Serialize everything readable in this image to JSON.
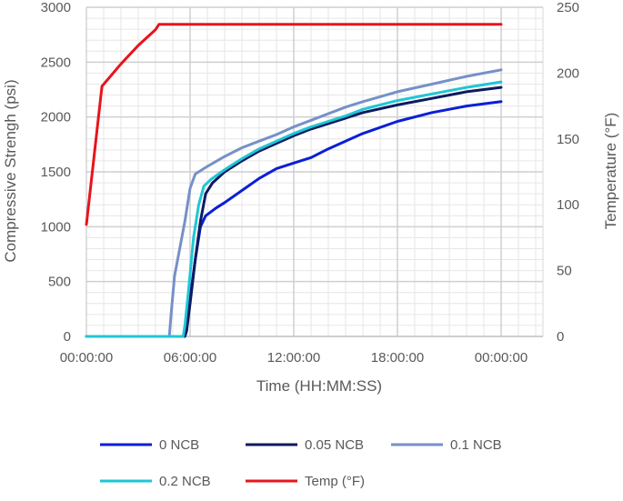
{
  "chart_data": {
    "type": "line",
    "xlabel": "Time (HH:MM:SS)",
    "ylabel": "Compressive Strengh (psi)",
    "y2label": "Temperature (°F)",
    "x_unit": "hours",
    "x_ticks": [
      {
        "value": 0,
        "label": "00:00:00"
      },
      {
        "value": 6,
        "label": "06:00:00"
      },
      {
        "value": 12,
        "label": "12:00:00"
      },
      {
        "value": 18,
        "label": "18:00:00"
      },
      {
        "value": 24,
        "label": "00:00:00"
      }
    ],
    "xlim": [
      0,
      24
    ],
    "ylim": [
      0,
      3000
    ],
    "y_ticks": [
      0,
      500,
      1000,
      1500,
      2000,
      2500,
      3000
    ],
    "y2lim": [
      0,
      250
    ],
    "y2_ticks": [
      0,
      50,
      100,
      150,
      200,
      250
    ],
    "grid": true,
    "legend_position": "bottom",
    "series": [
      {
        "name": "0 NCB",
        "axis": "left",
        "color": "#0a1fd6",
        "points": [
          [
            0,
            0
          ],
          [
            5.6,
            0
          ],
          [
            5.8,
            100
          ],
          [
            6.0,
            350
          ],
          [
            6.3,
            700
          ],
          [
            6.6,
            1000
          ],
          [
            6.9,
            1100
          ],
          [
            7.5,
            1170
          ],
          [
            8.0,
            1220
          ],
          [
            9.0,
            1330
          ],
          [
            10.0,
            1440
          ],
          [
            11.0,
            1530
          ],
          [
            12.0,
            1580
          ],
          [
            13.0,
            1630
          ],
          [
            14.0,
            1710
          ],
          [
            15.0,
            1780
          ],
          [
            16.0,
            1850
          ],
          [
            18.0,
            1960
          ],
          [
            20.0,
            2040
          ],
          [
            22.0,
            2100
          ],
          [
            24.0,
            2140
          ]
        ]
      },
      {
        "name": "0.05 NCB",
        "axis": "left",
        "color": "#0d1b5e",
        "points": [
          [
            0,
            0
          ],
          [
            5.7,
            0
          ],
          [
            5.8,
            50
          ],
          [
            6.0,
            300
          ],
          [
            6.3,
            700
          ],
          [
            6.6,
            1050
          ],
          [
            6.9,
            1300
          ],
          [
            7.3,
            1400
          ],
          [
            8.0,
            1500
          ],
          [
            9.0,
            1600
          ],
          [
            10.0,
            1690
          ],
          [
            11.0,
            1760
          ],
          [
            12.0,
            1830
          ],
          [
            13.0,
            1890
          ],
          [
            14.0,
            1940
          ],
          [
            15.0,
            1990
          ],
          [
            16.0,
            2040
          ],
          [
            18.0,
            2110
          ],
          [
            20.0,
            2170
          ],
          [
            22.0,
            2230
          ],
          [
            24.0,
            2270
          ]
        ]
      },
      {
        "name": "0.1 NCB",
        "axis": "left",
        "color": "#7690c8",
        "points": [
          [
            0,
            0
          ],
          [
            4.8,
            0
          ],
          [
            4.9,
            200
          ],
          [
            5.1,
            550
          ],
          [
            5.4,
            800
          ],
          [
            5.7,
            1050
          ],
          [
            6.0,
            1350
          ],
          [
            6.3,
            1480
          ],
          [
            7.0,
            1550
          ],
          [
            8.0,
            1640
          ],
          [
            9.0,
            1720
          ],
          [
            10.0,
            1780
          ],
          [
            11.0,
            1840
          ],
          [
            12.0,
            1910
          ],
          [
            13.0,
            1970
          ],
          [
            14.0,
            2030
          ],
          [
            15.0,
            2090
          ],
          [
            16.0,
            2140
          ],
          [
            18.0,
            2230
          ],
          [
            20.0,
            2300
          ],
          [
            22.0,
            2370
          ],
          [
            24.0,
            2430
          ]
        ]
      },
      {
        "name": "0.2 NCB",
        "axis": "left",
        "color": "#1fc6d6",
        "points": [
          [
            0,
            0
          ],
          [
            5.6,
            0
          ],
          [
            5.7,
            100
          ],
          [
            5.9,
            400
          ],
          [
            6.2,
            900
          ],
          [
            6.5,
            1200
          ],
          [
            6.8,
            1370
          ],
          [
            7.2,
            1430
          ],
          [
            8.0,
            1520
          ],
          [
            9.0,
            1620
          ],
          [
            10.0,
            1710
          ],
          [
            11.0,
            1780
          ],
          [
            12.0,
            1850
          ],
          [
            13.0,
            1910
          ],
          [
            14.0,
            1960
          ],
          [
            15.0,
            2010
          ],
          [
            16.0,
            2070
          ],
          [
            18.0,
            2150
          ],
          [
            20.0,
            2210
          ],
          [
            22.0,
            2270
          ],
          [
            24.0,
            2320
          ]
        ]
      },
      {
        "name": "Temp (°F)",
        "axis": "right",
        "color": "#e8141c",
        "points": [
          [
            0,
            85
          ],
          [
            0.9,
            190
          ],
          [
            2.0,
            207
          ],
          [
            3.0,
            221
          ],
          [
            4.0,
            233
          ],
          [
            4.2,
            237
          ],
          [
            24.0,
            237
          ]
        ]
      }
    ]
  }
}
